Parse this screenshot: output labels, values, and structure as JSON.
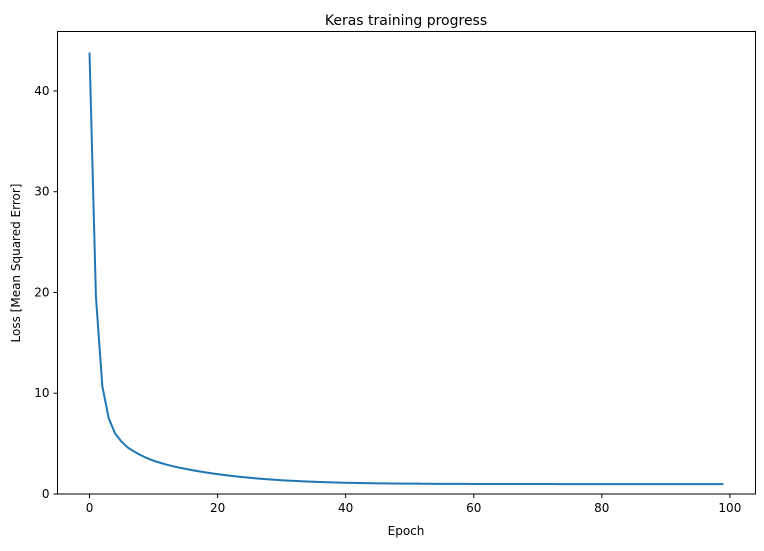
{
  "chart_data": {
    "type": "line",
    "title": "Keras training progress",
    "xlabel": "Epoch",
    "ylabel": "Loss [Mean Squared Error]",
    "xlim": [
      -5,
      104
    ],
    "ylim": [
      0,
      45.9
    ],
    "xticks": [
      0,
      20,
      40,
      60,
      80,
      100
    ],
    "yticks": [
      0,
      10,
      20,
      30,
      40
    ],
    "grid": false,
    "series": [
      {
        "color": "#1f77b4",
        "x_start": 0,
        "values": [
          43.8,
          19.6,
          10.7,
          7.5,
          6.0,
          5.2,
          4.6,
          4.2,
          3.85,
          3.55,
          3.3,
          3.1,
          2.92,
          2.76,
          2.62,
          2.49,
          2.37,
          2.26,
          2.16,
          2.06,
          1.97,
          1.89,
          1.81,
          1.74,
          1.67,
          1.61,
          1.55,
          1.5,
          1.45,
          1.41,
          1.37,
          1.33,
          1.3,
          1.27,
          1.24,
          1.21,
          1.19,
          1.17,
          1.15,
          1.13,
          1.12,
          1.1,
          1.09,
          1.08,
          1.07,
          1.06,
          1.05,
          1.045,
          1.04,
          1.035,
          1.03,
          1.025,
          1.02,
          1.015,
          1.01,
          1.01,
          1.005,
          1.0,
          1.0,
          1.0,
          0.995,
          0.995,
          0.995,
          0.99,
          0.99,
          0.99,
          0.99,
          0.99,
          0.99,
          0.99,
          0.99,
          0.99,
          0.99,
          0.985,
          0.985,
          0.985,
          0.985,
          0.985,
          0.985,
          0.985,
          0.98,
          0.98,
          0.98,
          0.98,
          0.98,
          0.98,
          0.98,
          0.98,
          0.98,
          0.98,
          0.98,
          0.98,
          0.98,
          0.98,
          0.98,
          0.98,
          0.98,
          0.98,
          0.98,
          0.98
        ]
      }
    ]
  }
}
